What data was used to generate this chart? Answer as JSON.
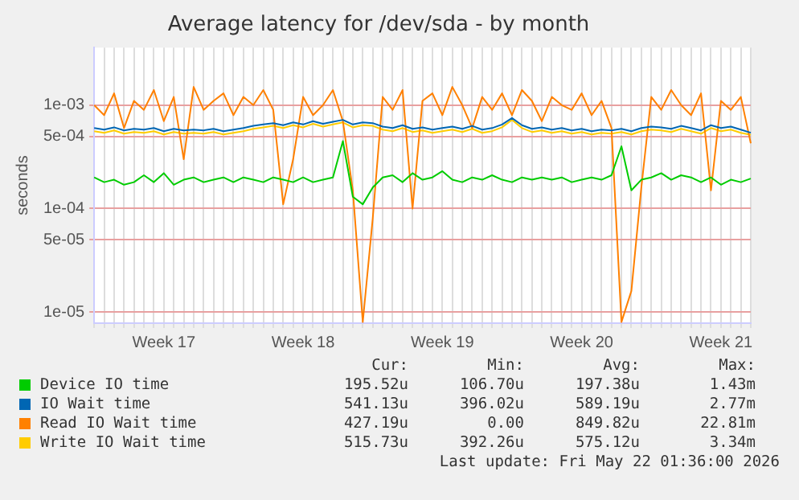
{
  "chart_data": {
    "type": "line",
    "title": "Average latency for /dev/sda - by month",
    "ylabel": "seconds",
    "log": "y",
    "categories": [
      null,
      null,
      null,
      null,
      null,
      null,
      null,
      "Week 17",
      null,
      null,
      null,
      null,
      null,
      null,
      null,
      null,
      null,
      null,
      null,
      null,
      null,
      "Week 18",
      null,
      null,
      null,
      null,
      null,
      null,
      null,
      null,
      null,
      null,
      null,
      null,
      null,
      "Week 19",
      null,
      null,
      null,
      null,
      null,
      null,
      null,
      null,
      null,
      null,
      null,
      null,
      null,
      "Week 20",
      null,
      null,
      null,
      null,
      null,
      null,
      null,
      null,
      null,
      null,
      null,
      null,
      null,
      "Week 21",
      null,
      null,
      null
    ],
    "ylim": [
      7.8e-06,
      0.0036
    ],
    "yticks": [
      {
        "value": 1e-05,
        "label": "1e-05"
      },
      {
        "value": 5e-05,
        "label": "5e-05"
      },
      {
        "value": 0.0001,
        "label": "1e-04"
      },
      {
        "value": 0.0005,
        "label": "5e-04"
      },
      {
        "value": 0.001,
        "label": "1e-03"
      }
    ],
    "grid": true,
    "legend": "bottom",
    "marker": "none",
    "line_style": "solid",
    "series": [
      {
        "name": "Device IO time",
        "color": "#00cc00",
        "values": [
          0.0002,
          0.00018,
          0.00019,
          0.00017,
          0.00018,
          0.00021,
          0.00018,
          0.00022,
          0.00017,
          0.00019,
          0.0002,
          0.00018,
          0.00019,
          0.0002,
          0.00018,
          0.0002,
          0.00019,
          0.00018,
          0.0002,
          0.00019,
          0.00018,
          0.0002,
          0.00018,
          0.00019,
          0.0002,
          0.00045,
          0.00013,
          0.00011,
          0.00016,
          0.0002,
          0.00021,
          0.00018,
          0.00022,
          0.00019,
          0.0002,
          0.00023,
          0.00019,
          0.00018,
          0.0002,
          0.00019,
          0.00021,
          0.00019,
          0.00018,
          0.0002,
          0.00019,
          0.0002,
          0.00019,
          0.0002,
          0.00018,
          0.00019,
          0.0002,
          0.00019,
          0.00021,
          0.0004,
          0.00015,
          0.00019,
          0.0002,
          0.00022,
          0.00019,
          0.00021,
          0.0002,
          0.00018,
          0.0002,
          0.00017,
          0.00019,
          0.00018,
          0.000195
        ]
      },
      {
        "name": "IO Wait time",
        "color": "#0066b3",
        "values": [
          0.0006,
          0.00058,
          0.00061,
          0.00057,
          0.00059,
          0.00058,
          0.0006,
          0.00056,
          0.00059,
          0.00057,
          0.00058,
          0.00057,
          0.00059,
          0.00056,
          0.00058,
          0.0006,
          0.00063,
          0.00065,
          0.00067,
          0.00064,
          0.00068,
          0.00065,
          0.0007,
          0.00066,
          0.00069,
          0.00072,
          0.00065,
          0.00068,
          0.00067,
          0.00062,
          0.0006,
          0.00064,
          0.00059,
          0.00061,
          0.00058,
          0.0006,
          0.00062,
          0.00059,
          0.00063,
          0.00058,
          0.0006,
          0.00065,
          0.00075,
          0.00064,
          0.00059,
          0.00061,
          0.00058,
          0.0006,
          0.00057,
          0.00059,
          0.00056,
          0.00058,
          0.00057,
          0.00059,
          0.00056,
          0.0006,
          0.00062,
          0.00061,
          0.00059,
          0.00063,
          0.0006,
          0.00057,
          0.00064,
          0.0006,
          0.00062,
          0.00058,
          0.000541
        ]
      },
      {
        "name": "Read IO Wait time",
        "color": "#ff8000",
        "values": [
          0.001,
          0.0008,
          0.0013,
          0.0006,
          0.0011,
          0.0009,
          0.0014,
          0.0007,
          0.0012,
          0.0003,
          0.0015,
          0.0009,
          0.0011,
          0.0013,
          0.0008,
          0.0012,
          0.001,
          0.0014,
          0.0009,
          0.00011,
          0.0003,
          0.0012,
          0.0008,
          0.001,
          0.0014,
          0.0007,
          0.00015,
          8e-06,
          8e-05,
          0.0012,
          0.0009,
          0.0014,
          0.0001,
          0.0011,
          0.0013,
          0.0008,
          0.0015,
          0.001,
          0.0006,
          0.0012,
          0.0009,
          0.0013,
          0.0008,
          0.0014,
          0.0011,
          0.0007,
          0.0012,
          0.001,
          0.0009,
          0.0013,
          0.0008,
          0.0011,
          0.0006,
          8e-06,
          1.6e-05,
          0.00016,
          0.0012,
          0.0009,
          0.0014,
          0.001,
          0.0008,
          0.0013,
          0.00015,
          0.0011,
          0.0009,
          0.0012,
          0.000427
        ]
      },
      {
        "name": "Write IO Wait time",
        "color": "#ffcc00",
        "values": [
          0.00056,
          0.00054,
          0.00057,
          0.00053,
          0.00055,
          0.00054,
          0.00056,
          0.00052,
          0.00055,
          0.00053,
          0.00054,
          0.00053,
          0.00055,
          0.00052,
          0.00054,
          0.00056,
          0.00059,
          0.00061,
          0.00063,
          0.0006,
          0.00064,
          0.00061,
          0.00066,
          0.00062,
          0.00065,
          0.00068,
          0.00061,
          0.00064,
          0.00063,
          0.00058,
          0.00056,
          0.0006,
          0.00055,
          0.00057,
          0.00054,
          0.00056,
          0.00058,
          0.00055,
          0.00059,
          0.00054,
          0.00056,
          0.00061,
          0.00072,
          0.0006,
          0.00055,
          0.00057,
          0.00054,
          0.00056,
          0.00053,
          0.00055,
          0.00052,
          0.00054,
          0.00053,
          0.00055,
          0.00052,
          0.00056,
          0.00058,
          0.00057,
          0.00055,
          0.00059,
          0.00056,
          0.00053,
          0.0006,
          0.00056,
          0.00058,
          0.00054,
          0.000516
        ]
      }
    ],
    "annotations": [
      "Cur:",
      "Min:",
      "Avg:",
      "Max:",
      "195.52u",
      "106.70u",
      "197.38u",
      "1.43m",
      "541.13u",
      "396.02u",
      "589.19u",
      "2.77m",
      "427.19u",
      "0.00",
      "849.82u",
      "22.81m",
      "515.73u",
      "392.26u",
      "575.12u",
      "3.34m",
      "Last update: Fri May 22 01:36:00 2026"
    ]
  }
}
